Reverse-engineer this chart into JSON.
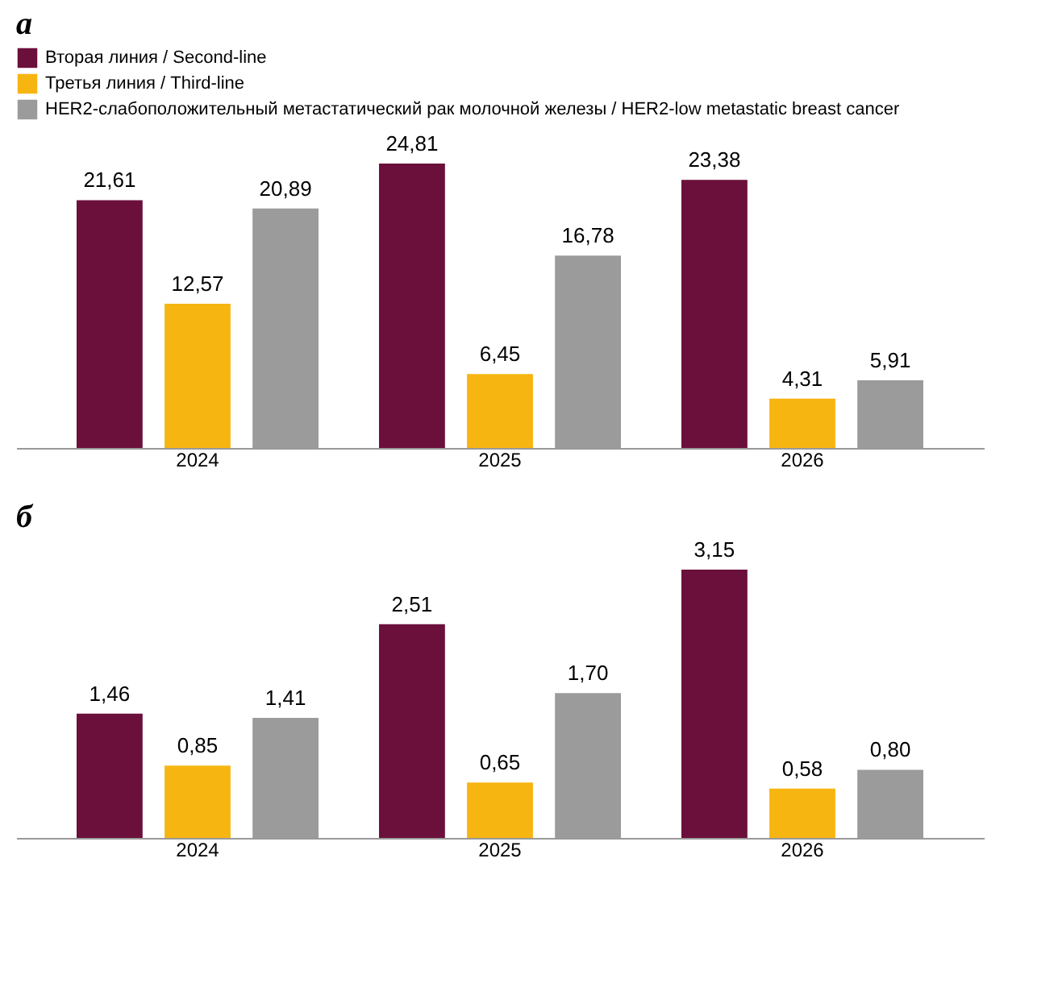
{
  "chart_data": [
    {
      "type": "bar",
      "title": "а",
      "categories": [
        "2024",
        "2025",
        "2026"
      ],
      "legend": "top",
      "grid": false,
      "series": [
        {
          "name": "Вторая линия / Second-line",
          "color": "#6b0f3b",
          "values": [
            21.61,
            24.81,
            23.38
          ],
          "value_labels": [
            "21,61",
            "24,81",
            "23,38"
          ]
        },
        {
          "name": "Третья линия / Third-line",
          "color": "#f7b512",
          "values": [
            12.57,
            6.45,
            4.31
          ],
          "value_labels": [
            "12,57",
            "6,45",
            "4,31"
          ]
        },
        {
          "name": "HER2-слабоположительный метастатический рак молочной железы / HER2-low metastatic breast cancer",
          "color": "#9b9b9b",
          "values": [
            20.89,
            16.78,
            5.91
          ],
          "value_labels": [
            "20,89",
            "16,78",
            "5,91"
          ]
        }
      ]
    },
    {
      "type": "bar",
      "title": "б",
      "categories": [
        "2024",
        "2025",
        "2026"
      ],
      "grid": false,
      "series": [
        {
          "color": "#6b0f3b",
          "values": [
            1.46,
            2.51,
            3.15
          ],
          "value_labels": [
            "1,46",
            "2,51",
            "3,15"
          ]
        },
        {
          "color": "#f7b512",
          "values": [
            0.85,
            0.65,
            0.58
          ],
          "value_labels": [
            "0,85",
            "0,65",
            "0,58"
          ]
        },
        {
          "color": "#9b9b9b",
          "values": [
            1.41,
            1.7,
            0.8
          ],
          "value_labels": [
            "1,41",
            "1,70",
            "0,80"
          ]
        }
      ]
    }
  ]
}
